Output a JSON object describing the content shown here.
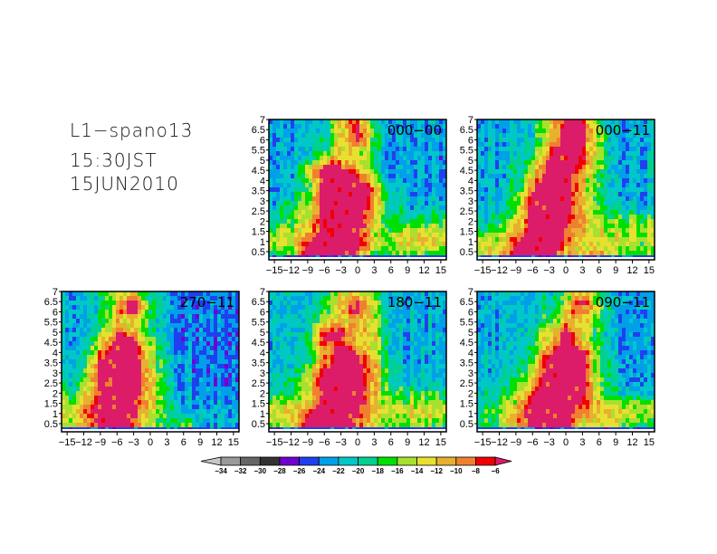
{
  "header": {
    "line1": "L1−spano13",
    "line2": "15:30JST",
    "line3": "15JUN2010"
  },
  "chart_data": {
    "type": "heatmap",
    "x_ticks": [
      -15,
      -12,
      -9,
      -6,
      -3,
      0,
      3,
      6,
      9,
      12,
      15
    ],
    "x_tick_labels": [
      "−15",
      "−12",
      "−9",
      "−6",
      "−3",
      "0",
      "3",
      "6",
      "9",
      "12",
      "15"
    ],
    "y_ticks": [
      0.5,
      1,
      1.5,
      2,
      2.5,
      3,
      3.5,
      4,
      4.5,
      5,
      5.5,
      6,
      6.5,
      7
    ],
    "y_tick_labels": [
      "0.5",
      "1",
      "1.5",
      "2",
      "2.5",
      "3",
      "3.5",
      "4",
      "4.5",
      "5",
      "5.5",
      "6",
      "6.5",
      "7"
    ],
    "xlim": [
      -16,
      16
    ],
    "ylim": [
      0.1,
      7
    ],
    "grid_x": [
      -15,
      -12,
      -9,
      -6,
      -3,
      0,
      3,
      6,
      9,
      12,
      15
    ],
    "grid_y_top_to_bottom": [
      7,
      6.5,
      6,
      5.5,
      5,
      4.5,
      4,
      3.5,
      3,
      2.5,
      2,
      1.5,
      1,
      0.5
    ],
    "panels": [
      {
        "label": "000−00",
        "values": [
          [
            -23,
            -23,
            -22,
            -20,
            -12,
            -8,
            -20,
            -23,
            -23,
            -23,
            -23
          ],
          [
            -23,
            -23,
            -22,
            -20,
            -14,
            -6,
            -18,
            -23,
            -23,
            -23,
            -23
          ],
          [
            -23,
            -23,
            -22,
            -19,
            -13,
            -6,
            -18,
            -23,
            -23,
            -23,
            -23
          ],
          [
            -23,
            -23,
            -22,
            -18,
            -12,
            -12,
            -19,
            -23,
            -23,
            -23,
            -23
          ],
          [
            -23,
            -23,
            -20,
            -12,
            -12,
            -13,
            -20,
            -23,
            -23,
            -23,
            -23
          ],
          [
            -23,
            -23,
            -14,
            -5,
            -5,
            -10,
            -18,
            -23,
            -23,
            -23,
            -23
          ],
          [
            -23,
            -22,
            -18,
            -5,
            -5,
            -6,
            -14,
            -22,
            -23,
            -23,
            -23
          ],
          [
            -23,
            -22,
            -18,
            -5,
            -5,
            -5,
            -8,
            -20,
            -23,
            -23,
            -23
          ],
          [
            -22,
            -20,
            -16,
            -5,
            -5,
            -5,
            -10,
            -20,
            -22,
            -22,
            -22
          ],
          [
            -21,
            -18,
            -15,
            -5,
            -5,
            -5,
            -12,
            -19,
            -21,
            -21,
            -21
          ],
          [
            -20,
            -17,
            -13,
            -5,
            -5,
            -5,
            -13,
            -18,
            -19,
            -18,
            -18
          ],
          [
            -16,
            -15,
            -12,
            -5,
            -5,
            -6,
            -14,
            -16,
            -15,
            -14,
            -14
          ],
          [
            -13,
            -14,
            -8,
            -5,
            -5,
            -6,
            -14,
            -15,
            -13,
            -12,
            -13
          ],
          [
            -17,
            -17,
            -6,
            -5,
            -5,
            -8,
            -17,
            -16,
            -16,
            -16,
            -17
          ]
        ]
      },
      {
        "label": "000−11",
        "values": [
          [
            -22,
            -22,
            -22,
            -20,
            -14,
            -6,
            -8,
            -18,
            -22,
            -22,
            -22
          ],
          [
            -22,
            -22,
            -22,
            -20,
            -13,
            -6,
            -6,
            -16,
            -22,
            -22,
            -22
          ],
          [
            -22,
            -22,
            -22,
            -19,
            -12,
            -6,
            -6,
            -15,
            -22,
            -22,
            -22
          ],
          [
            -22,
            -22,
            -22,
            -18,
            -10,
            -5,
            -8,
            -15,
            -22,
            -22,
            -22
          ],
          [
            -22,
            -22,
            -21,
            -16,
            -6,
            -5,
            -8,
            -15,
            -22,
            -22,
            -22
          ],
          [
            -22,
            -22,
            -20,
            -14,
            -5,
            -5,
            -10,
            -16,
            -22,
            -22,
            -22
          ],
          [
            -22,
            -22,
            -20,
            -10,
            -5,
            -5,
            -12,
            -17,
            -22,
            -22,
            -22
          ],
          [
            -22,
            -22,
            -19,
            -8,
            -5,
            -5,
            -12,
            -18,
            -22,
            -22,
            -22
          ],
          [
            -22,
            -22,
            -18,
            -6,
            -5,
            -5,
            -12,
            -18,
            -21,
            -22,
            -22
          ],
          [
            -22,
            -21,
            -17,
            -5,
            -5,
            -6,
            -12,
            -17,
            -19,
            -20,
            -21
          ],
          [
            -20,
            -19,
            -14,
            -5,
            -5,
            -7,
            -12,
            -15,
            -16,
            -15,
            -16
          ],
          [
            -18,
            -16,
            -12,
            -5,
            -5,
            -8,
            -12,
            -14,
            -14,
            -14,
            -15
          ],
          [
            -14,
            -13,
            -8,
            -5,
            -5,
            -8,
            -13,
            -14,
            -14,
            -14,
            -15
          ],
          [
            -14,
            -13,
            -6,
            -5,
            -5,
            -10,
            -14,
            -10,
            -15,
            -16,
            -17
          ]
        ]
      },
      {
        "label": "270−11",
        "values": [
          [
            -22,
            -22,
            -20,
            -14,
            -14,
            -20,
            -23,
            -24,
            -24,
            -24,
            -24
          ],
          [
            -22,
            -22,
            -20,
            -13,
            -5,
            -18,
            -23,
            -24,
            -24,
            -24,
            -24
          ],
          [
            -22,
            -22,
            -19,
            -12,
            -5,
            -18,
            -23,
            -24,
            -24,
            -24,
            -24
          ],
          [
            -22,
            -22,
            -19,
            -13,
            -12,
            -19,
            -23,
            -24,
            -24,
            -24,
            -24
          ],
          [
            -22,
            -22,
            -18,
            -8,
            -10,
            -18,
            -23,
            -24,
            -24,
            -24,
            -24
          ],
          [
            -22,
            -21,
            -14,
            -5,
            -6,
            -16,
            -22,
            -24,
            -24,
            -24,
            -24
          ],
          [
            -22,
            -20,
            -10,
            -5,
            -5,
            -14,
            -22,
            -24,
            -24,
            -24,
            -24
          ],
          [
            -22,
            -19,
            -6,
            -5,
            -5,
            -12,
            -21,
            -23,
            -24,
            -24,
            -24
          ],
          [
            -21,
            -17,
            -6,
            -5,
            -5,
            -12,
            -21,
            -23,
            -24,
            -24,
            -24
          ],
          [
            -20,
            -16,
            -7,
            -5,
            -5,
            -12,
            -20,
            -23,
            -23,
            -24,
            -24
          ],
          [
            -18,
            -14,
            -7,
            -5,
            -5,
            -12,
            -20,
            -22,
            -23,
            -23,
            -24
          ],
          [
            -16,
            -12,
            -6,
            -5,
            -6,
            -12,
            -19,
            -22,
            -23,
            -23,
            -23
          ],
          [
            -14,
            -10,
            -5,
            -5,
            -6,
            -13,
            -19,
            -21,
            -22,
            -22,
            -22
          ],
          [
            -15,
            -12,
            -5,
            -5,
            -8,
            -15,
            -20,
            -14,
            -22,
            -22,
            -22
          ]
        ]
      },
      {
        "label": "180−11",
        "values": [
          [
            -22,
            -22,
            -22,
            -20,
            -14,
            -14,
            -20,
            -22,
            -22,
            -22,
            -22
          ],
          [
            -22,
            -22,
            -22,
            -18,
            -12,
            -6,
            -16,
            -22,
            -22,
            -22,
            -22
          ],
          [
            -22,
            -22,
            -22,
            -18,
            -12,
            -6,
            -15,
            -22,
            -22,
            -22,
            -22
          ],
          [
            -22,
            -22,
            -21,
            -14,
            -12,
            -12,
            -15,
            -22,
            -22,
            -22,
            -22
          ],
          [
            -22,
            -22,
            -20,
            -8,
            -6,
            -12,
            -14,
            -22,
            -22,
            -22,
            -22
          ],
          [
            -22,
            -22,
            -19,
            -7,
            -8,
            -12,
            -14,
            -21,
            -22,
            -22,
            -22
          ],
          [
            -22,
            -22,
            -19,
            -12,
            -5,
            -8,
            -14,
            -21,
            -22,
            -22,
            -22
          ],
          [
            -22,
            -22,
            -18,
            -10,
            -5,
            -5,
            -12,
            -20,
            -22,
            -22,
            -22
          ],
          [
            -22,
            -21,
            -16,
            -6,
            -5,
            -5,
            -12,
            -20,
            -22,
            -22,
            -22
          ],
          [
            -21,
            -20,
            -15,
            -5,
            -5,
            -6,
            -12,
            -19,
            -21,
            -21,
            -21
          ],
          [
            -20,
            -18,
            -14,
            -5,
            -5,
            -6,
            -12,
            -17,
            -18,
            -18,
            -18
          ],
          [
            -16,
            -15,
            -13,
            -5,
            -5,
            -6,
            -13,
            -15,
            -15,
            -15,
            -15
          ],
          [
            -13,
            -13,
            -8,
            -5,
            -5,
            -7,
            -13,
            -14,
            -13,
            -13,
            -14
          ],
          [
            -16,
            -15,
            -6,
            -5,
            -5,
            -8,
            -15,
            -16,
            -16,
            -16,
            -17
          ]
        ]
      },
      {
        "label": "090−11",
        "values": [
          [
            -22,
            -22,
            -22,
            -22,
            -20,
            -16,
            -10,
            -18,
            -22,
            -22,
            -22
          ],
          [
            -22,
            -22,
            -22,
            -22,
            -20,
            -14,
            -6,
            -16,
            -22,
            -22,
            -22
          ],
          [
            -22,
            -22,
            -22,
            -22,
            -19,
            -12,
            -8,
            -16,
            -22,
            -22,
            -22
          ],
          [
            -22,
            -22,
            -22,
            -21,
            -17,
            -10,
            -12,
            -18,
            -22,
            -22,
            -22
          ],
          [
            -22,
            -22,
            -22,
            -20,
            -14,
            -6,
            -12,
            -19,
            -22,
            -22,
            -22
          ],
          [
            -22,
            -22,
            -22,
            -19,
            -12,
            -5,
            -12,
            -19,
            -22,
            -22,
            -22
          ],
          [
            -22,
            -22,
            -22,
            -18,
            -8,
            -5,
            -5,
            -17,
            -22,
            -22,
            -22
          ],
          [
            -22,
            -22,
            -21,
            -16,
            -6,
            -5,
            -6,
            -17,
            -22,
            -22,
            -22
          ],
          [
            -22,
            -22,
            -20,
            -14,
            -5,
            -5,
            -6,
            -17,
            -22,
            -22,
            -22
          ],
          [
            -22,
            -21,
            -18,
            -12,
            -5,
            -5,
            -6,
            -16,
            -21,
            -22,
            -22
          ],
          [
            -21,
            -20,
            -16,
            -8,
            -5,
            -5,
            -6,
            -15,
            -20,
            -21,
            -21
          ],
          [
            -20,
            -18,
            -14,
            -6,
            -5,
            -5,
            -8,
            -13,
            -14,
            -15,
            -16
          ],
          [
            -18,
            -16,
            -10,
            -5,
            -5,
            -5,
            -10,
            -12,
            -12,
            -13,
            -14
          ],
          [
            -18,
            -17,
            -12,
            -6,
            -5,
            -6,
            -12,
            -14,
            -15,
            -16,
            -18
          ]
        ]
      }
    ],
    "colorbar": {
      "levels": [
        -34,
        -32,
        -30,
        -28,
        -26,
        -24,
        -22,
        -20,
        -18,
        -16,
        -14,
        -12,
        -10,
        -8,
        -6
      ],
      "level_labels": [
        "−34",
        "−32",
        "−30",
        "−28",
        "−26",
        "−24",
        "−22",
        "−20",
        "−18",
        "−16",
        "−14",
        "−12",
        "−10",
        "−8",
        "−6"
      ],
      "colors": [
        "#c8c8c8",
        "#9a9a9a",
        "#666666",
        "#333333",
        "#7000d0",
        "#2040f0",
        "#00a0e8",
        "#00c8c8",
        "#00d090",
        "#00e000",
        "#a8e030",
        "#e8e030",
        "#e8b030",
        "#f08030",
        "#f00000",
        "#dc1c68"
      ],
      "orientation": "horizontal",
      "placement": "bottom"
    }
  }
}
